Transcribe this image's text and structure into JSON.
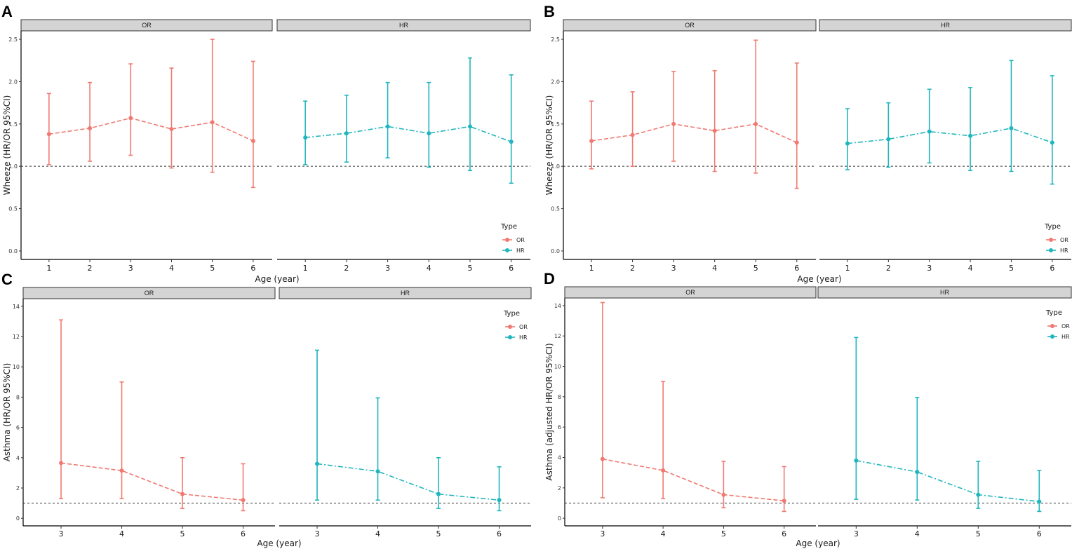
{
  "colors": {
    "or": "#f07a72",
    "hr": "#1fb6bd"
  },
  "chart_data": [
    {
      "panel": "A",
      "type": "line",
      "facets": [
        "OR",
        "HR"
      ],
      "categories": [
        "1",
        "2",
        "3",
        "4",
        "5",
        "6"
      ],
      "series": [
        {
          "name": "OR",
          "facet": "OR",
          "values": [
            1.38,
            1.45,
            1.57,
            1.44,
            1.52,
            1.3
          ],
          "lower": [
            1.02,
            1.06,
            1.13,
            0.98,
            0.93,
            0.75
          ],
          "upper": [
            1.86,
            1.99,
            2.21,
            2.16,
            2.5,
            2.24
          ]
        },
        {
          "name": "HR",
          "facet": "HR",
          "values": [
            1.34,
            1.39,
            1.47,
            1.39,
            1.47,
            1.29
          ],
          "lower": [
            1.02,
            1.05,
            1.1,
            0.99,
            0.95,
            0.8
          ],
          "upper": [
            1.77,
            1.84,
            1.99,
            1.99,
            2.28,
            2.08
          ]
        }
      ],
      "ylim": [
        -0.1,
        2.6
      ],
      "yticks": [
        "0.0",
        "0.5",
        "1.0",
        "1.5",
        "2.0",
        "2.5"
      ],
      "xlabel": "Age (year)",
      "ylabel": "Wheeze (HR/OR 95%CI)",
      "reference_line": 1,
      "legend": {
        "title": "Type",
        "entries": [
          "OR",
          "HR"
        ],
        "position": "bottom-right"
      }
    },
    {
      "panel": "B",
      "type": "line",
      "facets": [
        "OR",
        "HR"
      ],
      "categories": [
        "1",
        "2",
        "3",
        "4",
        "5",
        "6"
      ],
      "series": [
        {
          "name": "OR",
          "facet": "OR",
          "values": [
            1.3,
            1.37,
            1.5,
            1.42,
            1.5,
            1.28
          ],
          "lower": [
            0.97,
            1.0,
            1.06,
            0.94,
            0.92,
            0.74
          ],
          "upper": [
            1.77,
            1.88,
            2.12,
            2.13,
            2.49,
            2.22
          ]
        },
        {
          "name": "HR",
          "facet": "HR",
          "values": [
            1.27,
            1.32,
            1.41,
            1.36,
            1.45,
            1.28
          ],
          "lower": [
            0.96,
            0.99,
            1.04,
            0.95,
            0.94,
            0.79
          ],
          "upper": [
            1.68,
            1.75,
            1.91,
            1.93,
            2.25,
            2.07
          ]
        }
      ],
      "ylim": [
        -0.1,
        2.6
      ],
      "yticks": [
        "0.0",
        "0.5",
        "1.0",
        "1.5",
        "2.0",
        "2.5"
      ],
      "xlabel": "Age (year)",
      "ylabel": "Wheeze (HR/OR 95%CI)",
      "reference_line": 1,
      "legend": {
        "title": "Type",
        "entries": [
          "OR",
          "HR"
        ],
        "position": "bottom-right"
      }
    },
    {
      "panel": "C",
      "type": "line",
      "facets": [
        "OR",
        "HR"
      ],
      "categories": [
        "3",
        "4",
        "5",
        "6"
      ],
      "series": [
        {
          "name": "OR",
          "facet": "OR",
          "values": [
            3.65,
            3.15,
            1.6,
            1.2
          ],
          "lower": [
            1.3,
            1.3,
            0.65,
            0.5
          ],
          "upper": [
            13.1,
            9.0,
            4.0,
            3.6
          ]
        },
        {
          "name": "HR",
          "facet": "HR",
          "values": [
            3.6,
            3.1,
            1.6,
            1.2
          ],
          "lower": [
            1.2,
            1.2,
            0.65,
            0.5
          ],
          "upper": [
            11.1,
            7.95,
            4.0,
            3.4
          ]
        }
      ],
      "ylim": [
        -0.5,
        14.5
      ],
      "yticks": [
        "0",
        "2",
        "4",
        "6",
        "8",
        "10",
        "12",
        "14"
      ],
      "xlabel": "Age (year)",
      "ylabel": "Asthma (HR/OR 95%CI)",
      "reference_line": 1,
      "legend": {
        "title": "Type",
        "entries": [
          "OR",
          "HR"
        ],
        "position": "top-right"
      }
    },
    {
      "panel": "D",
      "type": "line",
      "facets": [
        "OR",
        "HR"
      ],
      "categories": [
        "3",
        "4",
        "5",
        "6"
      ],
      "series": [
        {
          "name": "OR",
          "facet": "OR",
          "values": [
            3.9,
            3.15,
            1.55,
            1.15
          ],
          "lower": [
            1.35,
            1.3,
            0.7,
            0.45
          ],
          "upper": [
            14.2,
            9.0,
            3.75,
            3.4
          ]
        },
        {
          "name": "HR",
          "facet": "HR",
          "values": [
            3.8,
            3.05,
            1.55,
            1.1
          ],
          "lower": [
            1.25,
            1.2,
            0.65,
            0.45
          ],
          "upper": [
            11.9,
            7.95,
            3.75,
            3.15
          ]
        }
      ],
      "ylim": [
        -0.5,
        14.5
      ],
      "yticks": [
        "0",
        "2",
        "4",
        "6",
        "8",
        "10",
        "12",
        "14"
      ],
      "xlabel": "Age (year)",
      "ylabel": "Asthma (adjusted HR/OR 95%CI)",
      "reference_line": 1,
      "legend": {
        "title": "Type",
        "entries": [
          "OR",
          "HR"
        ],
        "position": "top-right"
      }
    }
  ]
}
